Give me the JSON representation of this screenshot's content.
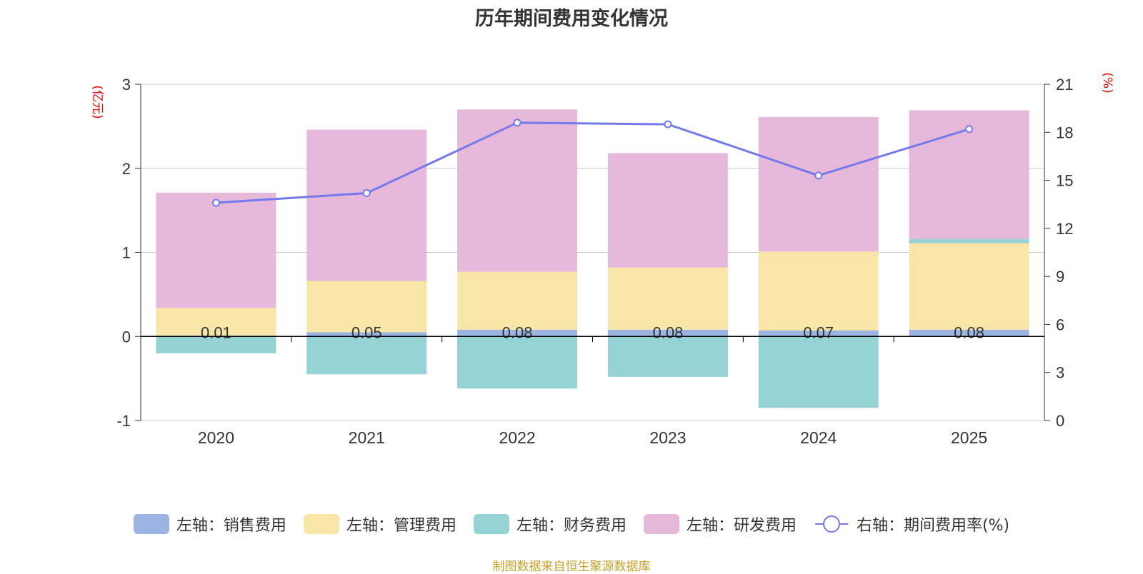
{
  "title": "历年期间费用变化情况",
  "source": "制图数据来自恒生聚源数据库",
  "colors": {
    "sales": "#9cb4e2",
    "admin": "#f8e6a8",
    "finance": "#96d3d4",
    "rd": "#e6b8da",
    "rate": "#7479ec",
    "axis_unit": "#ee0000"
  },
  "chart_data": {
    "type": "bar",
    "stacked": true,
    "categories": [
      "2020",
      "2021",
      "2022",
      "2023",
      "2024",
      "2025"
    ],
    "left_axis": {
      "unit": "(亿元)",
      "ylim": [
        -1,
        3
      ],
      "ticks": [
        "-1",
        "0",
        "1",
        "2",
        "3"
      ]
    },
    "right_axis": {
      "unit": "(%)",
      "ylim": [
        0,
        21
      ],
      "ticks": [
        "0",
        "3",
        "6",
        "9",
        "12",
        "15",
        "18",
        "21"
      ]
    },
    "grid": true,
    "legend_position": "bottom",
    "series": [
      {
        "key": "sales",
        "name": "左轴：销售费用",
        "axis": "left",
        "type": "bar",
        "values": [
          0.01,
          0.05,
          0.08,
          0.08,
          0.07,
          0.08
        ]
      },
      {
        "key": "admin",
        "name": "左轴：管理费用",
        "axis": "left",
        "type": "bar",
        "values": [
          0.33,
          0.61,
          0.69,
          0.74,
          0.94,
          1.03
        ]
      },
      {
        "key": "finance",
        "name": "左轴：财务费用",
        "axis": "left",
        "type": "bar",
        "values": [
          -0.2,
          -0.45,
          -0.62,
          -0.48,
          -0.85,
          0.05
        ]
      },
      {
        "key": "rd",
        "name": "左轴：研发费用",
        "axis": "left",
        "type": "bar",
        "values": [
          1.37,
          1.8,
          1.93,
          1.36,
          1.6,
          1.53
        ]
      },
      {
        "key": "rate",
        "name": "右轴：期间费用率(%)",
        "axis": "right",
        "type": "line",
        "values": [
          13.6,
          14.2,
          18.6,
          18.5,
          15.3,
          18.2
        ]
      }
    ],
    "data_labels": [
      "0.01",
      "0.05",
      "0.08",
      "0.08",
      "0.07",
      "0.08"
    ]
  }
}
